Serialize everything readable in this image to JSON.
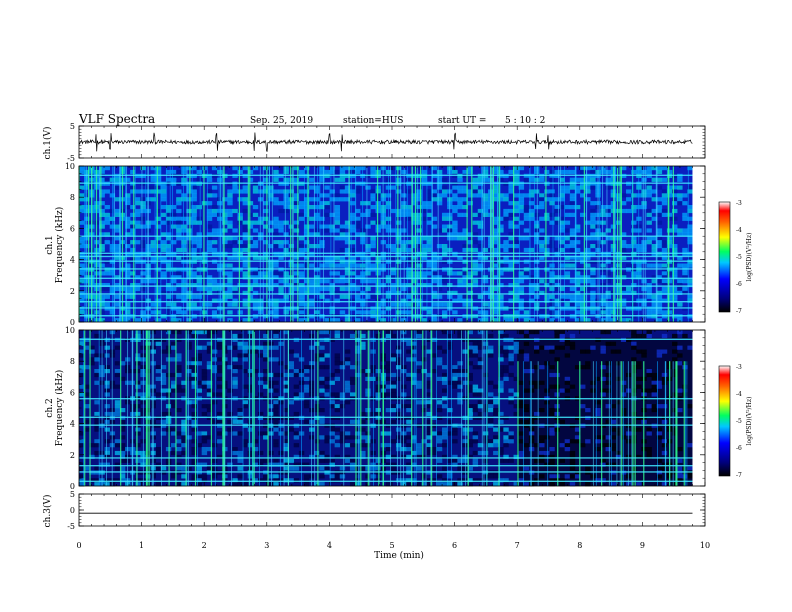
{
  "header": {
    "title": "VLF Spectra",
    "date": "Sep. 25, 2019",
    "station": "station=HUS",
    "start_label": "start  UT =",
    "start_time": "5 : 10 : 2"
  },
  "colors": {
    "background": "#ffffff",
    "axis": "#000000",
    "spectrogram_low": "#00008b",
    "spectrogram_mid": "#00b4ff",
    "spectrogram_high": "#00ff80",
    "gap_color": "#000000"
  },
  "chart_data": [
    {
      "type": "line",
      "name": "ch1-waveform",
      "ylabel": "ch.1(V)",
      "ylim": [
        -5,
        5
      ],
      "y_ticks": [
        "5",
        "-5"
      ],
      "x_range_min": [
        0,
        9.8
      ],
      "baseline": 0.0,
      "noise_amplitude": 0.6,
      "spike_times_min": [
        0.28,
        0.5,
        1.2,
        2.2,
        2.8,
        3.0,
        4.0,
        4.2,
        6.0,
        7.3,
        7.5
      ]
    },
    {
      "type": "heatmap",
      "name": "ch1-spectrogram",
      "ylabel": "ch.1\nFrequency (kHz)",
      "ylabel_line1": "ch.1",
      "ylabel_line2": "Frequency (kHz)",
      "ylim": [
        0,
        10
      ],
      "y_ticks": [
        "0",
        "2",
        "4",
        "6",
        "8",
        "10"
      ],
      "x_range_min": [
        0,
        9.8
      ],
      "band_freqs_khz": [
        0.4,
        0.9,
        1.3,
        1.8,
        2.3,
        2.8,
        3.4,
        3.9,
        4.2,
        4.4,
        5.5,
        8.9,
        9.4
      ],
      "colorbar": {
        "label": "log(PSD)(V²/Hz)",
        "ticks": [
          "-3",
          "-4",
          "-5",
          "-6",
          "-7"
        ],
        "range": [
          -7,
          -3
        ]
      }
    },
    {
      "type": "heatmap",
      "name": "ch2-spectrogram",
      "ylabel": "ch.2\nFrequency (kHz)",
      "ylabel_line1": "ch.2",
      "ylabel_line2": "Frequency (kHz)",
      "ylim": [
        0,
        10
      ],
      "y_ticks": [
        "0",
        "2",
        "4",
        "6",
        "8",
        "10"
      ],
      "x_range_min": [
        0,
        9.8
      ],
      "band_freqs_khz": [
        0.3,
        0.9,
        1.3,
        1.8,
        3.9,
        4.4,
        5.6,
        9.4
      ],
      "quiet_after_min": 7.0,
      "colorbar": {
        "label": "log(PSD)(V²/Hz)",
        "ticks": [
          "-3",
          "-4",
          "-5",
          "-6",
          "-7"
        ],
        "range": [
          -7,
          -3
        ]
      }
    },
    {
      "type": "line",
      "name": "ch3-waveform",
      "ylabel": "ch.3(V)",
      "ylim": [
        -5,
        5
      ],
      "y_ticks": [
        "5",
        "0",
        "-5"
      ],
      "x_range_min": [
        0,
        9.8
      ],
      "baseline": -1.0
    }
  ],
  "x_axis": {
    "label": "Time (min)",
    "range": [
      0,
      10
    ],
    "ticks": [
      "0",
      "1",
      "2",
      "3",
      "4",
      "5",
      "6",
      "7",
      "8",
      "9",
      "10"
    ]
  }
}
